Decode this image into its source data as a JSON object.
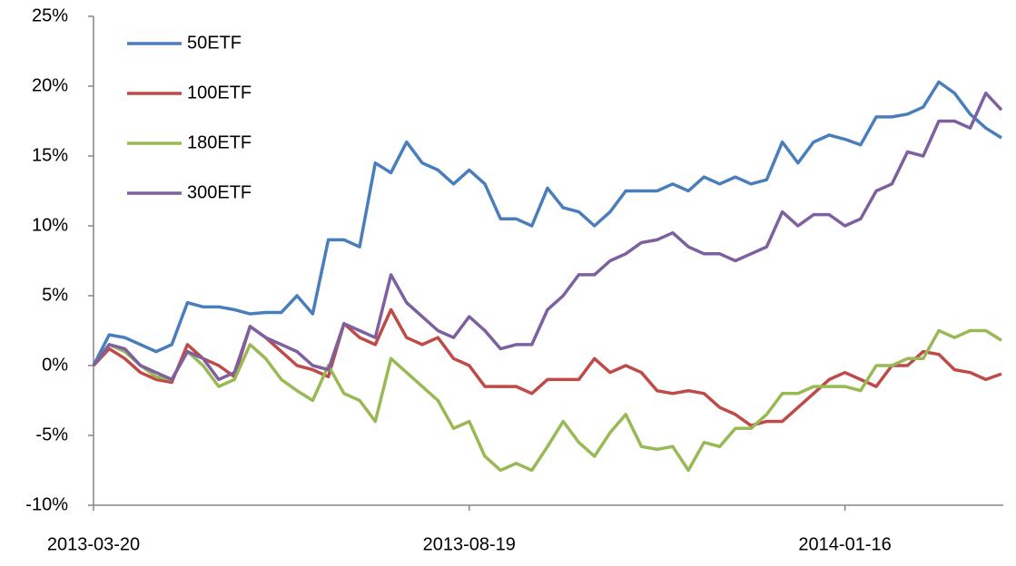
{
  "chart_data": {
    "type": "line",
    "categories": [
      "2013-03-20",
      null,
      null,
      null,
      null,
      null,
      null,
      null,
      null,
      null,
      null,
      null,
      null,
      null,
      null,
      null,
      null,
      null,
      null,
      null,
      null,
      null,
      null,
      null,
      "2013-08-19",
      null,
      null,
      null,
      null,
      null,
      null,
      null,
      null,
      null,
      null,
      null,
      null,
      null,
      null,
      null,
      null,
      null,
      null,
      null,
      null,
      null,
      null,
      null,
      "2014-01-16",
      null,
      null,
      null,
      null,
      null,
      null,
      null,
      null,
      null,
      null
    ],
    "series": [
      {
        "name": "50ETF",
        "color": "#4a7ebb",
        "values": [
          0,
          2.2,
          2.0,
          1.5,
          1.0,
          1.5,
          4.5,
          4.2,
          4.2,
          4.0,
          3.7,
          3.8,
          3.8,
          5.0,
          3.7,
          9.0,
          9.0,
          8.5,
          14.5,
          13.8,
          16.0,
          14.5,
          14.0,
          13.0,
          14.0,
          13.0,
          10.5,
          10.5,
          10.0,
          12.7,
          11.3,
          11.0,
          10.0,
          11.0,
          12.5,
          12.5,
          12.5,
          13.0,
          12.5,
          13.5,
          13.0,
          13.5,
          13.0,
          13.3,
          16.0,
          14.5,
          16.0,
          16.5,
          16.2,
          15.8,
          17.8,
          17.8,
          18.0,
          18.5,
          20.3,
          19.5,
          18.0,
          17.0,
          16.3
        ]
      },
      {
        "name": "100ETF",
        "color": "#be4b48",
        "values": [
          0,
          1.2,
          0.5,
          -0.5,
          -1.0,
          -1.2,
          1.5,
          0.5,
          0,
          -0.8,
          2.8,
          2.0,
          1.0,
          0,
          -0.3,
          -0.8,
          3.0,
          2.0,
          1.5,
          4.0,
          2.0,
          1.5,
          2.0,
          0.5,
          0,
          -1.5,
          -1.5,
          -1.5,
          -2.0,
          -1.0,
          -1.0,
          -1.0,
          0.5,
          -0.5,
          0,
          -0.5,
          -1.8,
          -2.0,
          -1.8,
          -2.0,
          -3.0,
          -3.5,
          -4.3,
          -4.0,
          -4.0,
          -3.0,
          -2.0,
          -1.0,
          -0.5,
          -1.0,
          -1.5,
          0,
          0,
          1.0,
          0.8,
          -0.3,
          -0.5,
          -1.0,
          -0.6
        ]
      },
      {
        "name": "180ETF",
        "color": "#98b954",
        "values": [
          0,
          1.5,
          1.0,
          0,
          -0.8,
          -1.0,
          1.0,
          0,
          -1.5,
          -1.0,
          1.5,
          0.5,
          -1.0,
          -1.8,
          -2.5,
          0,
          -2.0,
          -2.5,
          -4.0,
          0.5,
          -0.5,
          -1.5,
          -2.5,
          -4.5,
          -4.0,
          -6.5,
          -7.5,
          -7.0,
          -7.5,
          -5.8,
          -4.0,
          -5.5,
          -6.5,
          -4.8,
          -3.5,
          -5.8,
          -6.0,
          -5.8,
          -7.5,
          -5.5,
          -5.8,
          -4.5,
          -4.5,
          -3.5,
          -2.0,
          -2.0,
          -1.5,
          -1.5,
          -1.5,
          -1.8,
          0,
          0,
          0.5,
          0.5,
          2.5,
          2.0,
          2.5,
          2.5,
          1.8
        ]
      },
      {
        "name": "300ETF",
        "color": "#7d60a0",
        "values": [
          0,
          1.5,
          1.2,
          0,
          -0.5,
          -1.0,
          1.0,
          0.5,
          -1.0,
          -0.5,
          2.8,
          2.0,
          1.5,
          1.0,
          0,
          -0.3,
          3.0,
          2.5,
          2.0,
          6.5,
          4.5,
          3.5,
          2.5,
          2.0,
          3.5,
          2.5,
          1.2,
          1.5,
          1.5,
          4.0,
          5.0,
          6.5,
          6.5,
          7.5,
          8.0,
          8.8,
          9.0,
          9.5,
          8.5,
          8.0,
          8.0,
          7.5,
          8.0,
          8.5,
          11.0,
          10.0,
          10.8,
          10.8,
          10.0,
          10.5,
          12.5,
          13.0,
          15.3,
          15.0,
          17.5,
          17.5,
          17.0,
          19.5,
          18.3
        ]
      }
    ],
    "ylim": [
      -10,
      25
    ],
    "yticks": [
      {
        "value": -10,
        "label": "-10%"
      },
      {
        "value": -5,
        "label": "-5%"
      },
      {
        "value": 0,
        "label": "0%"
      },
      {
        "value": 5,
        "label": "5%"
      },
      {
        "value": 10,
        "label": "10%"
      },
      {
        "value": 15,
        "label": "15%"
      },
      {
        "value": 20,
        "label": "20%"
      },
      {
        "value": 25,
        "label": "25%"
      }
    ],
    "legend": "top-left",
    "grid": false
  }
}
